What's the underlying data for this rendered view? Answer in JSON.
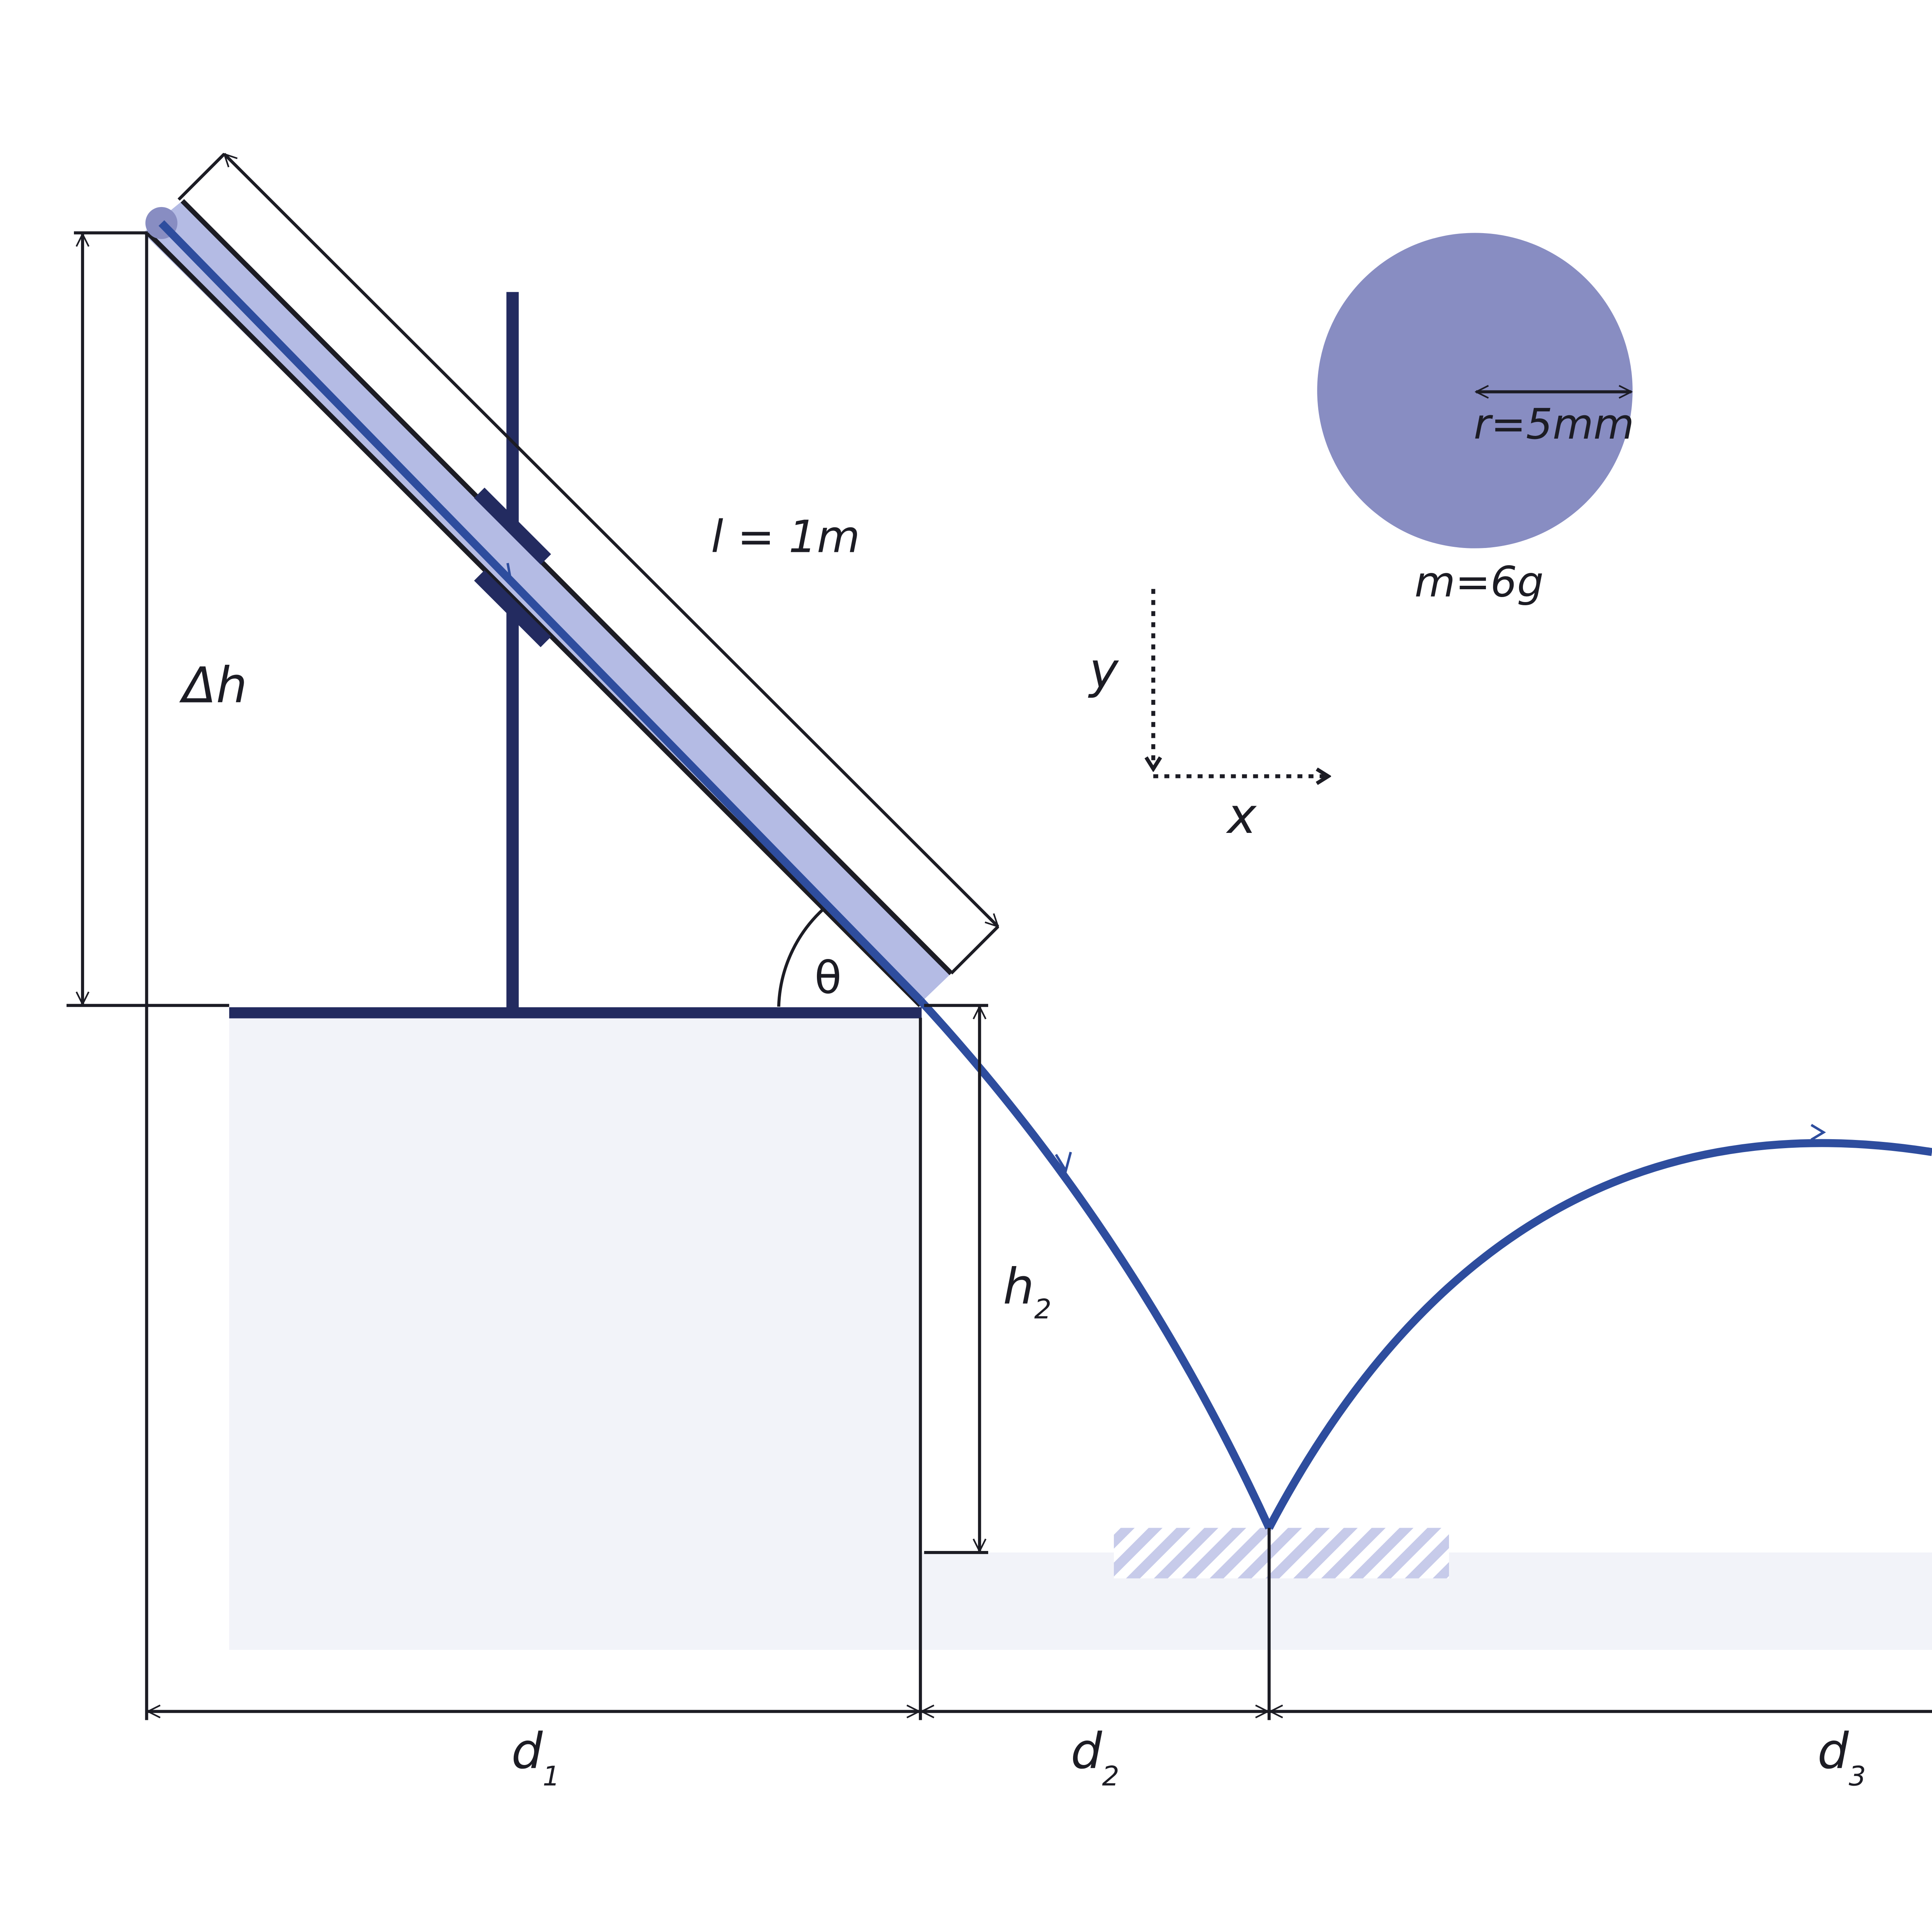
{
  "labels": {
    "length": "l = 1m",
    "delta_h": "Δh",
    "angle": "θ",
    "h2_main": "h",
    "h2_sub": "2",
    "d1_main": "d",
    "d1_sub": "1",
    "d2_main": "d",
    "d2_sub": "2",
    "d3_main": "d",
    "d3_sub": "3",
    "radius": "r=5mm",
    "mass": "m=6g",
    "axis_y": "y",
    "axis_x": "x"
  },
  "colors": {
    "ramp_fill": "#b4bbe4",
    "ball": "#888dc2",
    "table_fill": "#f2f3f9",
    "stand": "#232b60",
    "trajectory": "#2e4d9e",
    "landing_hatch": "#c7cbea",
    "ink": "#1c1c24"
  }
}
